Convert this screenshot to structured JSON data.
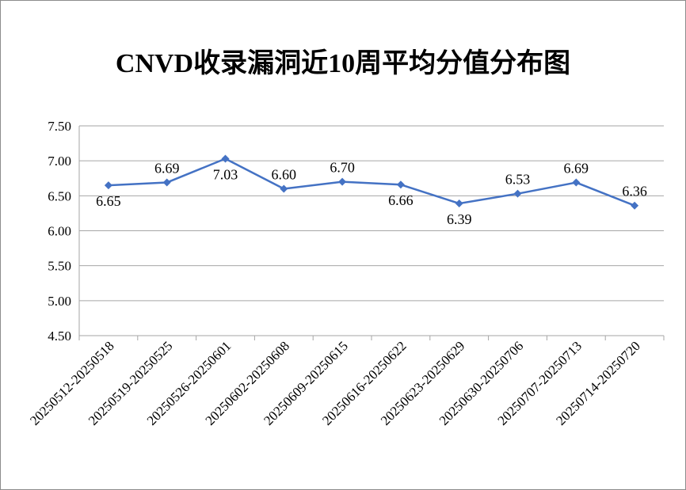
{
  "chart_data": {
    "type": "line",
    "title": "CNVD收录漏洞近10周平均分值分布图",
    "categories": [
      "20250512-20250518",
      "20250519-20250525",
      "20250526-20250601",
      "20250602-20250608",
      "20250609-20250615",
      "20250616-20250622",
      "20250623-20250629",
      "20250630-20250706",
      "20250707-20250713",
      "20250714-20250720"
    ],
    "values": [
      6.65,
      6.69,
      7.03,
      6.6,
      6.7,
      6.66,
      6.39,
      6.53,
      6.69,
      6.36
    ],
    "value_labels": [
      "6.65",
      "6.69",
      "7.03",
      "6.60",
      "6.70",
      "6.66",
      "6.39",
      "6.53",
      "6.69",
      "6.36"
    ],
    "label_positions": [
      "below",
      "above",
      "below",
      "above",
      "above",
      "below",
      "below",
      "above",
      "above",
      "above"
    ],
    "yticks": [
      "4.50",
      "5.00",
      "5.50",
      "6.00",
      "6.50",
      "7.00",
      "7.50"
    ],
    "ylim": [
      4.5,
      7.5
    ],
    "grid": true,
    "legend": "none",
    "line_color": "#4472C4"
  }
}
